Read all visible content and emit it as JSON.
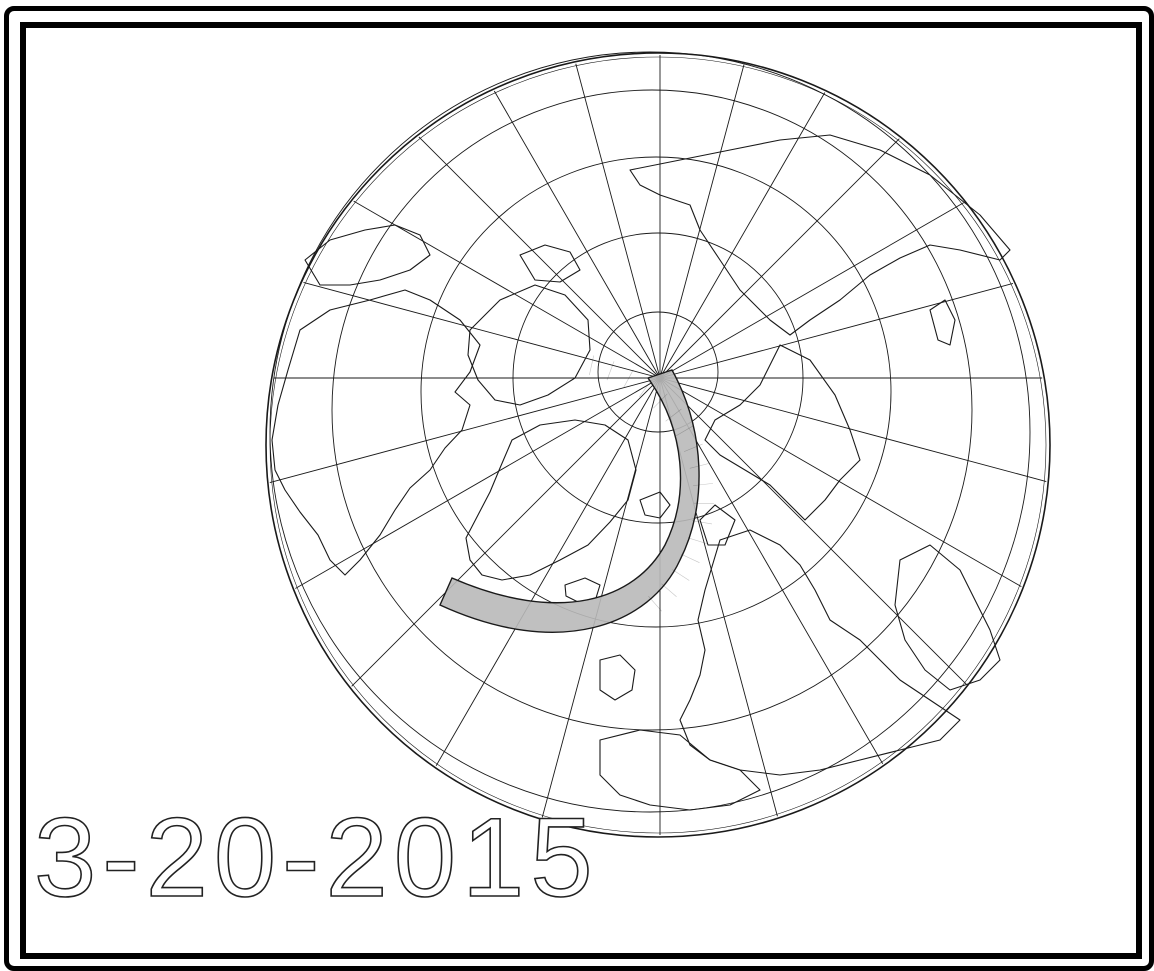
{
  "date_label": "3-20-2015",
  "colors": {
    "ink": "#1a1a1a",
    "eclipse_path_fill": "#b9b9b9",
    "paper": "#ffffff",
    "frame": "#000000"
  },
  "map": {
    "projection": "orthographic",
    "center": "north-pole",
    "features": [
      "globe-outline",
      "graticule",
      "coastlines",
      "eclipse-path-band"
    ]
  }
}
